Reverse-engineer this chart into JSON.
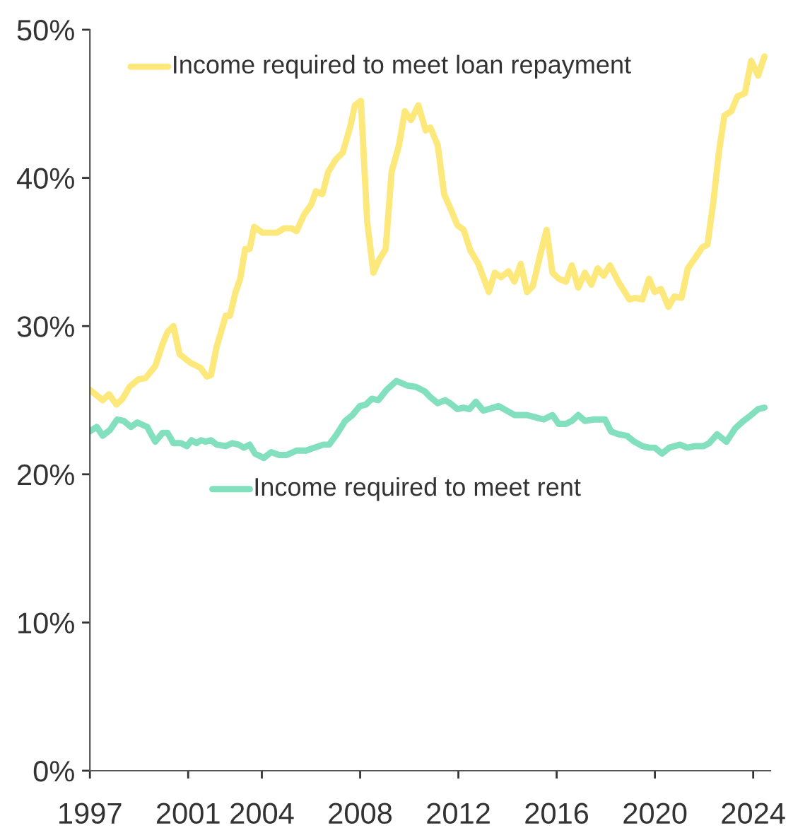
{
  "chart_data": {
    "type": "line",
    "xlim": [
      1997,
      2024.7
    ],
    "xticks": [
      1997,
      2001,
      2004,
      2008,
      2012,
      2016,
      2020,
      2024
    ],
    "ylim": [
      0,
      50
    ],
    "yticks": [
      {
        "value": 0,
        "label": "0%"
      },
      {
        "value": 10,
        "label": "10%"
      },
      {
        "value": 20,
        "label": "20%"
      },
      {
        "value": 30,
        "label": "30%"
      },
      {
        "value": 40,
        "label": "40%"
      },
      {
        "value": 50,
        "label": "50%"
      }
    ],
    "grid": false,
    "legend": "top left",
    "marker": "none",
    "line_style": "solid",
    "series": [
      {
        "name": "Income required to meet loan repayment",
        "color": "#fde87c",
        "x": [
          1997.0,
          1997.52,
          1997.78,
          1998.08,
          1998.33,
          1998.61,
          1998.97,
          1999.27,
          1999.66,
          1999.96,
          2000.16,
          2000.4,
          2000.65,
          2001.11,
          2001.49,
          2001.76,
          2001.93,
          2002.16,
          2002.53,
          2002.7,
          2002.93,
          2003.12,
          2003.32,
          2003.5,
          2003.69,
          2004.02,
          2004.61,
          2004.91,
          2005.21,
          2005.41,
          2005.71,
          2006.01,
          2006.2,
          2006.46,
          2006.7,
          2006.99,
          2007.29,
          2007.59,
          2007.79,
          2008.03,
          2008.29,
          2008.54,
          2008.78,
          2009.04,
          2009.28,
          2009.58,
          2009.82,
          2010.07,
          2010.37,
          2010.67,
          2010.86,
          2011.16,
          2011.42,
          2011.66,
          2011.96,
          2012.21,
          2012.49,
          2012.81,
          2013.24,
          2013.48,
          2013.74,
          2014.04,
          2014.28,
          2014.54,
          2014.79,
          2015.03,
          2015.33,
          2015.59,
          2015.83,
          2016.08,
          2016.38,
          2016.62,
          2016.88,
          2017.15,
          2017.41,
          2017.67,
          2017.91,
          2018.17,
          2018.51,
          2018.7,
          2018.96,
          2019.2,
          2019.49,
          2019.76,
          2019.99,
          2020.25,
          2020.55,
          2020.79,
          2021.08,
          2021.34,
          2021.64,
          2021.92,
          2022.14,
          2022.38,
          2022.61,
          2022.83,
          2023.11,
          2023.36,
          2023.66,
          2023.92,
          2024.2,
          2024.46
        ],
        "values": [
          25.7,
          25.0,
          25.4,
          24.7,
          25.1,
          25.9,
          26.4,
          26.5,
          27.3,
          28.8,
          29.6,
          30.0,
          28.1,
          27.5,
          27.2,
          26.6,
          26.7,
          28.6,
          30.7,
          30.7,
          32.3,
          33.2,
          35.2,
          35.2,
          36.7,
          36.3,
          36.3,
          36.6,
          36.6,
          36.4,
          37.5,
          38.2,
          39.1,
          38.9,
          40.4,
          41.2,
          41.7,
          43.4,
          44.9,
          45.2,
          37.0,
          33.6,
          34.5,
          35.2,
          40.4,
          42.2,
          44.5,
          43.9,
          44.9,
          43.2,
          43.4,
          42.2,
          38.9,
          38.0,
          36.8,
          36.5,
          35.1,
          34.2,
          32.3,
          33.6,
          33.3,
          33.7,
          33.0,
          34.2,
          32.3,
          32.7,
          34.8,
          36.5,
          33.6,
          33.2,
          33.0,
          34.1,
          32.6,
          33.6,
          32.8,
          33.9,
          33.4,
          34.1,
          33.0,
          32.5,
          31.8,
          31.9,
          31.8,
          33.2,
          32.3,
          32.5,
          31.3,
          32.0,
          31.9,
          33.9,
          34.6,
          35.3,
          35.5,
          38.4,
          41.8,
          44.2,
          44.5,
          45.5,
          45.7,
          47.9,
          46.9,
          48.2
        ]
      },
      {
        "name": "Income required to meet rent",
        "color": "#82e0bf",
        "x": [
          1997.0,
          1997.28,
          1997.52,
          1997.82,
          1998.11,
          1998.38,
          1998.67,
          1998.93,
          1999.33,
          1999.66,
          1999.96,
          2000.16,
          2000.4,
          2000.71,
          2000.95,
          2001.14,
          2001.34,
          2001.53,
          2001.71,
          2001.93,
          2002.16,
          2002.53,
          2002.79,
          2003.05,
          2003.27,
          2003.5,
          2003.72,
          2004.08,
          2004.38,
          2004.71,
          2005.01,
          2005.41,
          2005.8,
          2006.14,
          2006.5,
          2006.74,
          2007.05,
          2007.39,
          2007.69,
          2007.99,
          2008.23,
          2008.48,
          2008.74,
          2009.08,
          2009.48,
          2009.91,
          2010.27,
          2010.63,
          2010.86,
          2011.16,
          2011.46,
          2011.66,
          2011.96,
          2012.21,
          2012.45,
          2012.71,
          2013.01,
          2013.64,
          2014.28,
          2014.79,
          2015.47,
          2015.83,
          2016.08,
          2016.38,
          2016.62,
          2016.88,
          2017.15,
          2017.51,
          2017.97,
          2018.21,
          2018.51,
          2018.86,
          2019.16,
          2019.49,
          2019.76,
          2019.99,
          2020.29,
          2020.59,
          2021.02,
          2021.32,
          2021.64,
          2021.98,
          2022.21,
          2022.53,
          2022.91,
          2023.27,
          2023.6,
          2023.92,
          2024.2,
          2024.46
        ],
        "values": [
          22.9,
          23.2,
          22.6,
          23.0,
          23.7,
          23.6,
          23.2,
          23.5,
          23.2,
          22.2,
          22.8,
          22.8,
          22.1,
          22.1,
          21.9,
          22.3,
          22.1,
          22.3,
          22.2,
          22.3,
          22.0,
          21.9,
          22.1,
          22.0,
          21.8,
          22.0,
          21.4,
          21.1,
          21.5,
          21.3,
          21.3,
          21.6,
          21.6,
          21.8,
          22.0,
          22.0,
          22.7,
          23.6,
          24.0,
          24.6,
          24.7,
          25.1,
          25.0,
          25.7,
          26.3,
          26.0,
          25.9,
          25.6,
          25.2,
          24.8,
          25.0,
          24.8,
          24.4,
          24.5,
          24.4,
          24.9,
          24.3,
          24.6,
          24.0,
          24.0,
          23.7,
          24.0,
          23.4,
          23.4,
          23.6,
          24.0,
          23.6,
          23.7,
          23.7,
          22.9,
          22.7,
          22.6,
          22.2,
          21.9,
          21.8,
          21.8,
          21.4,
          21.8,
          22.0,
          21.8,
          21.9,
          21.9,
          22.1,
          22.7,
          22.2,
          23.1,
          23.6,
          24.0,
          24.4,
          24.5
        ]
      }
    ]
  }
}
